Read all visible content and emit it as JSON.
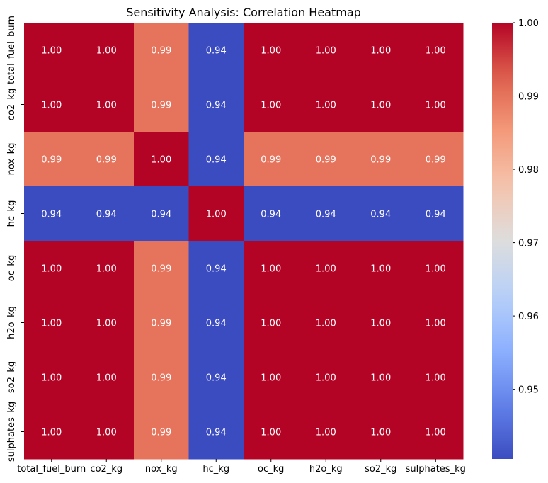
{
  "chart_data": {
    "type": "heatmap",
    "title": "Sensitivity Analysis: Correlation Heatmap",
    "xlabel": "",
    "ylabel": "",
    "rows": [
      "total_fuel_burn",
      "co2_kg",
      "nox_kg",
      "hc_kg",
      "oc_kg",
      "h2o_kg",
      "so2_kg",
      "sulphates_kg"
    ],
    "columns": [
      "total_fuel_burn",
      "co2_kg",
      "nox_kg",
      "hc_kg",
      "oc_kg",
      "h2o_kg",
      "so2_kg",
      "sulphates_kg"
    ],
    "values": [
      [
        1.0,
        1.0,
        0.99,
        0.94,
        1.0,
        1.0,
        1.0,
        1.0
      ],
      [
        1.0,
        1.0,
        0.99,
        0.94,
        1.0,
        1.0,
        1.0,
        1.0
      ],
      [
        0.99,
        0.99,
        1.0,
        0.94,
        0.99,
        0.99,
        0.99,
        0.99
      ],
      [
        0.94,
        0.94,
        0.94,
        1.0,
        0.94,
        0.94,
        0.94,
        0.94
      ],
      [
        1.0,
        1.0,
        0.99,
        0.94,
        1.0,
        1.0,
        1.0,
        1.0
      ],
      [
        1.0,
        1.0,
        0.99,
        0.94,
        1.0,
        1.0,
        1.0,
        1.0
      ],
      [
        1.0,
        1.0,
        0.99,
        0.94,
        1.0,
        1.0,
        1.0,
        1.0
      ],
      [
        1.0,
        1.0,
        0.99,
        0.94,
        1.0,
        1.0,
        1.0,
        1.0
      ]
    ],
    "annotation_format": "2 decimals",
    "colormap": "coolwarm",
    "color_range": [
      0.9405,
      1.0
    ],
    "colorbar": {
      "ticks": [
        0.95,
        0.96,
        0.97,
        0.98,
        0.99,
        1.0
      ],
      "tick_labels": [
        "0.95",
        "0.96",
        "0.97",
        "0.98",
        "0.99",
        "1.00"
      ]
    },
    "grid": false,
    "legend": "colorbar-right"
  }
}
